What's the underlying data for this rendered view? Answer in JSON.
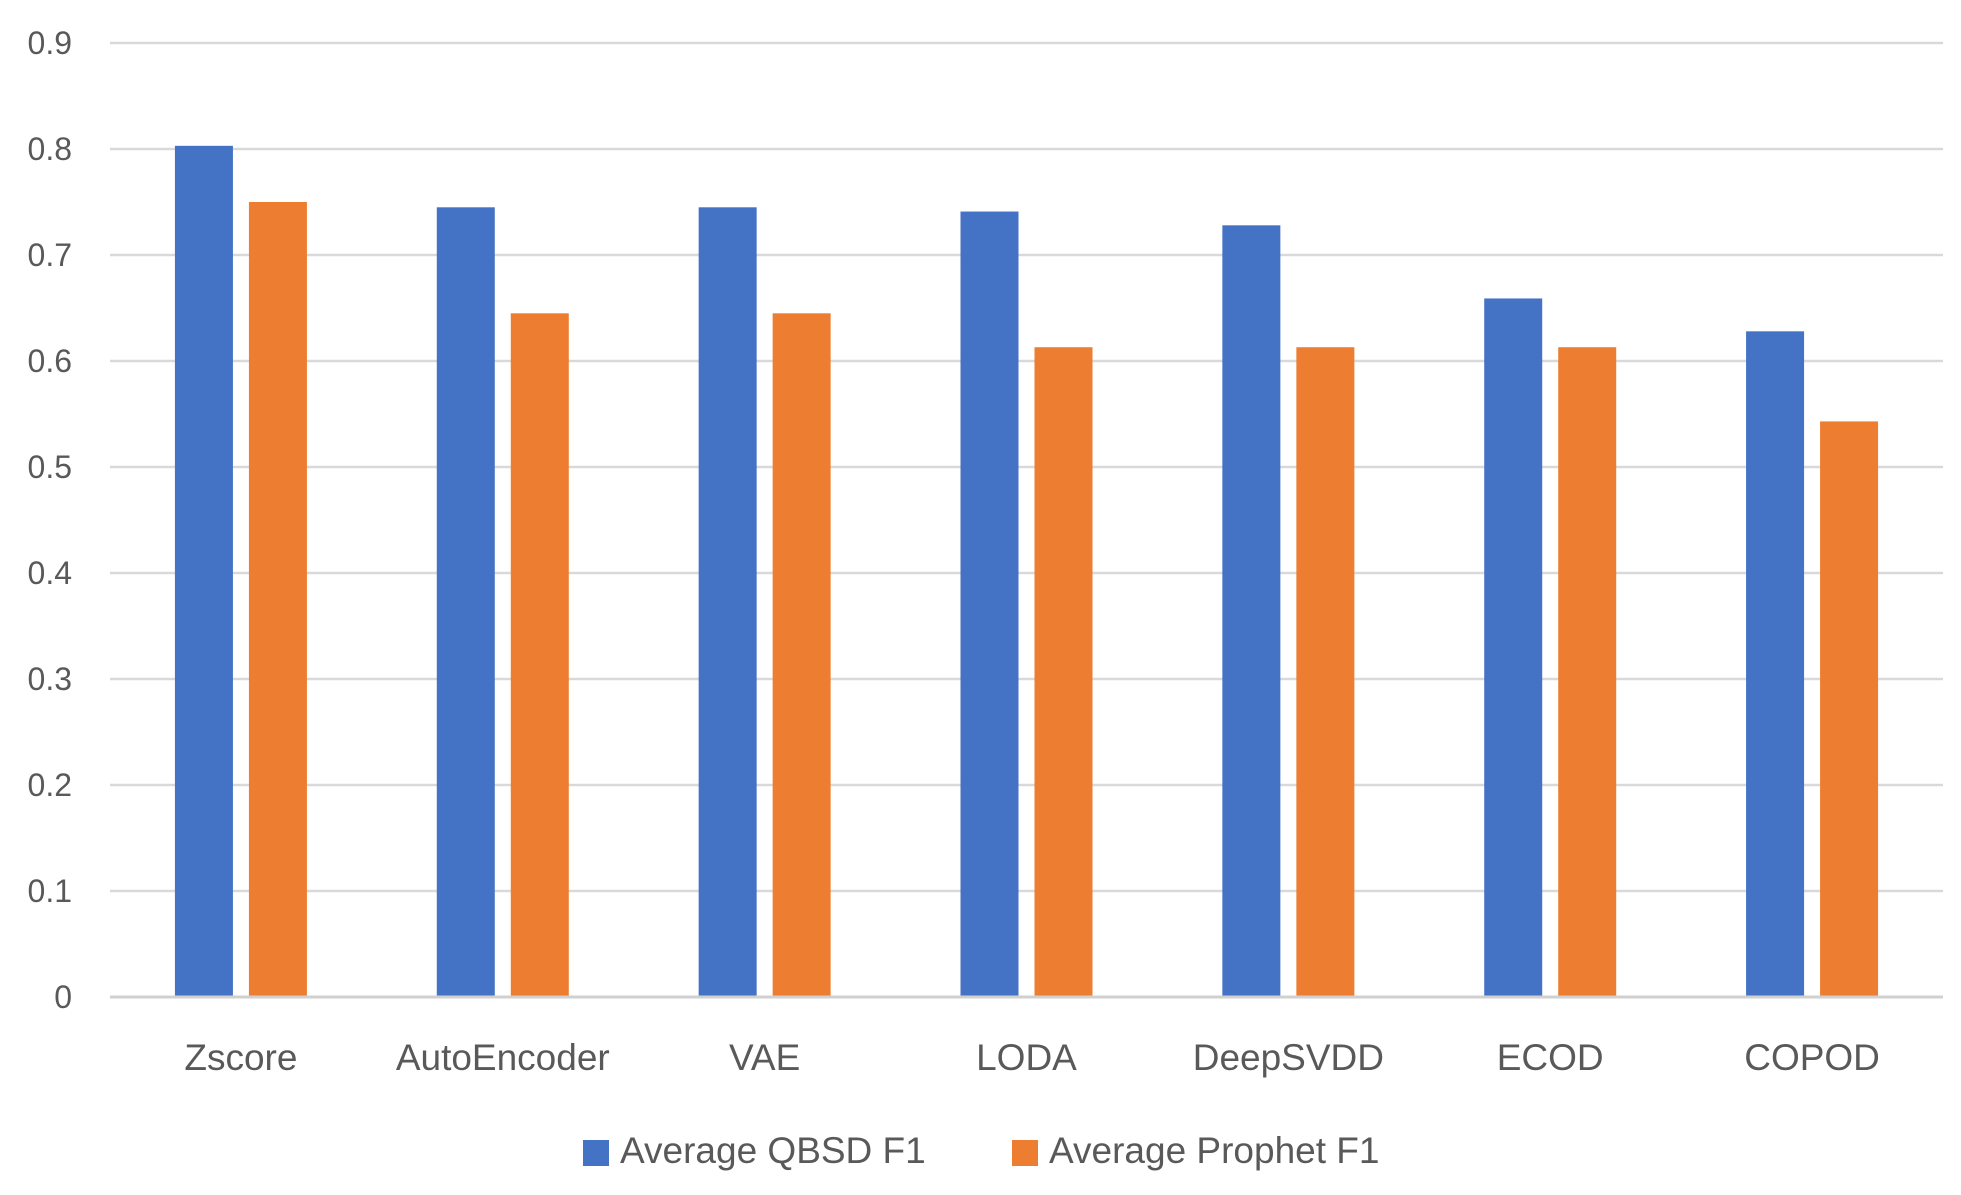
{
  "chart_data": {
    "type": "bar",
    "title": "",
    "xlabel": "",
    "ylabel": "",
    "ylim": [
      0,
      0.9
    ],
    "yticks": [
      "0",
      "0.1",
      "0.2",
      "0.3",
      "0.4",
      "0.5",
      "0.6",
      "0.7",
      "0.8",
      "0.9"
    ],
    "grid": true,
    "legend_position": "bottom",
    "categories": [
      "Zscore",
      "AutoEncoder",
      "VAE",
      "LODA",
      "DeepSVDD",
      "ECOD",
      "COPOD"
    ],
    "series": [
      {
        "name": "Average QBSD F1",
        "color": "#4472C4",
        "values": [
          0.803,
          0.745,
          0.745,
          0.741,
          0.728,
          0.659,
          0.628
        ]
      },
      {
        "name": "Average Prophet F1",
        "color": "#ED7D31",
        "values": [
          0.75,
          0.645,
          0.645,
          0.613,
          0.613,
          0.613,
          0.543
        ]
      }
    ]
  }
}
